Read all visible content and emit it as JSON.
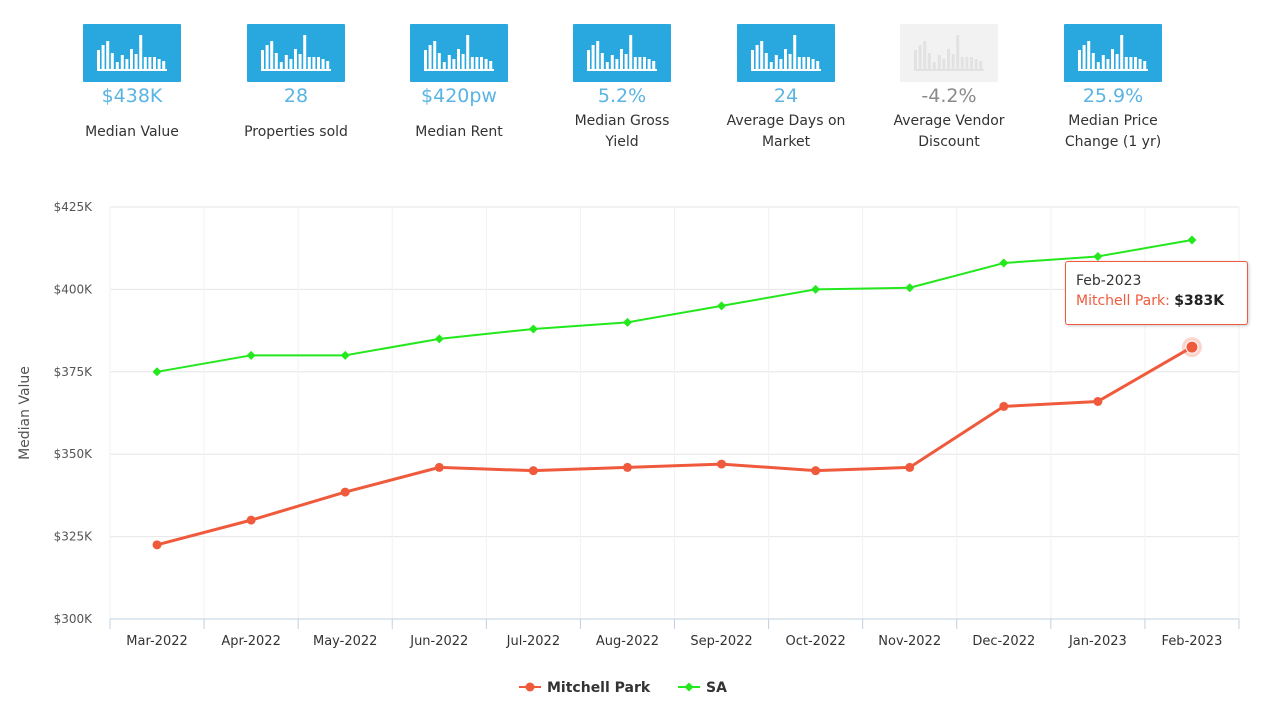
{
  "stats": [
    {
      "value": "$438K",
      "label": "Median Value",
      "active": true
    },
    {
      "value": "28",
      "label": "Properties sold",
      "active": true
    },
    {
      "value": "$420pw",
      "label": "Median Rent",
      "active": true
    },
    {
      "value": "5.2%",
      "label": "Median Gross Yield",
      "active": true
    },
    {
      "value": "24",
      "label": "Average Days on Market",
      "active": true
    },
    {
      "value": "-4.2%",
      "label": "Average Vendor Discount",
      "active": false
    },
    {
      "value": "25.9%",
      "label": "Median Price Change (1 yr)",
      "active": true
    }
  ],
  "icon_name": "bar-chart-icon",
  "colors": {
    "accent": "#29a8e0",
    "mitchell": "#f05a3c",
    "sa": "#22e81c"
  },
  "chart_data": {
    "type": "line",
    "title": "",
    "xlabel": "",
    "ylabel": "Median Value",
    "categories": [
      "Mar-2022",
      "Apr-2022",
      "May-2022",
      "Jun-2022",
      "Jul-2022",
      "Aug-2022",
      "Sep-2022",
      "Oct-2022",
      "Nov-2022",
      "Dec-2022",
      "Jan-2023",
      "Feb-2023"
    ],
    "ylim": [
      300,
      425
    ],
    "yticks": [
      300,
      325,
      350,
      375,
      400,
      425
    ],
    "ytick_labels": [
      "$300K",
      "$325K",
      "$350K",
      "$375K",
      "$400K",
      "$425K"
    ],
    "series": [
      {
        "name": "Mitchell Park",
        "color": "#f05a3c",
        "values": [
          322.5,
          330,
          338.5,
          346,
          345,
          346,
          347,
          345,
          346,
          364.5,
          366,
          382.5
        ]
      },
      {
        "name": "SA",
        "color": "#22e81c",
        "values": [
          375,
          380,
          380,
          385,
          388,
          390,
          395,
          400,
          400.5,
          408,
          410,
          415
        ]
      }
    ],
    "legend_position": "bottom-center",
    "tooltip": {
      "date": "Feb-2023",
      "series": "Mitchell Park:",
      "value": "$383K"
    }
  }
}
